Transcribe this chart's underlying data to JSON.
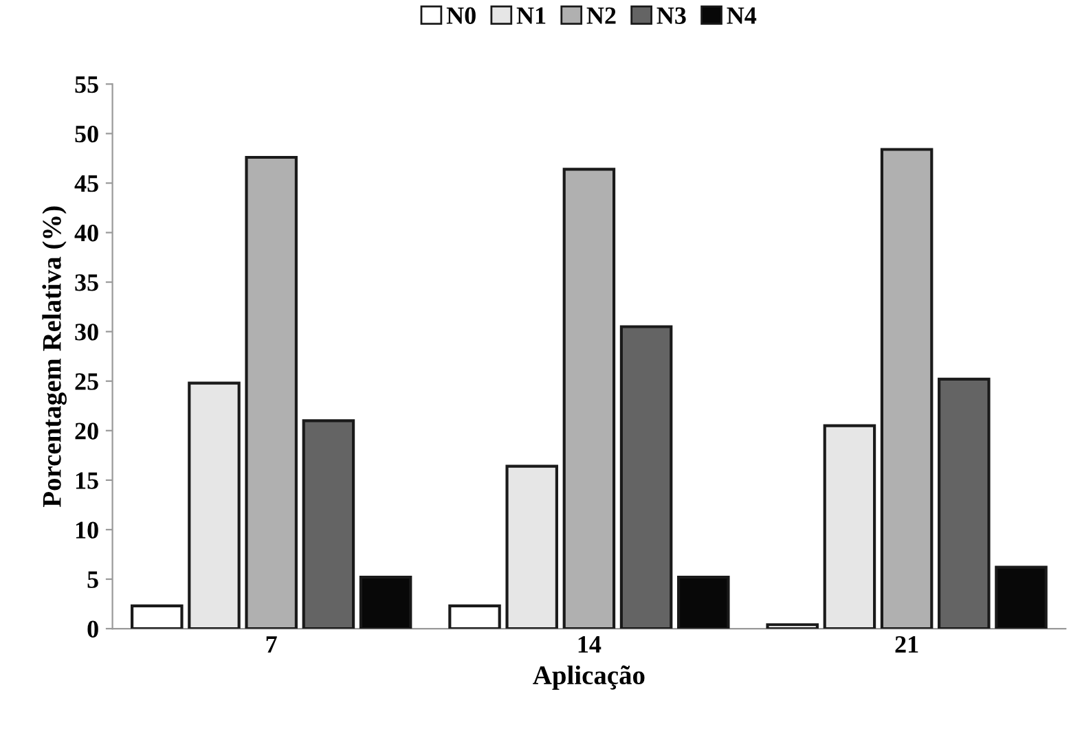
{
  "chart_data": {
    "type": "bar",
    "xlabel": "Aplicação",
    "ylabel": "Porcentagem Relativa (%)",
    "categories": [
      "7",
      "14",
      "21"
    ],
    "series": [
      {
        "name": "N0",
        "color": "#ffffff",
        "values": [
          2.3,
          2.3,
          0.4
        ]
      },
      {
        "name": "N1",
        "color": "#e6e6e6",
        "values": [
          24.8,
          16.4,
          20.5
        ]
      },
      {
        "name": "N2",
        "color": "#b0b0b0",
        "values": [
          47.6,
          46.4,
          48.4
        ]
      },
      {
        "name": "N3",
        "color": "#646464",
        "values": [
          21.0,
          30.5,
          25.2
        ]
      },
      {
        "name": "N4",
        "color": "#080808",
        "values": [
          5.2,
          5.2,
          6.2
        ]
      }
    ],
    "ylim": [
      0,
      55
    ],
    "yticks": [
      0,
      5,
      10,
      15,
      20,
      25,
      30,
      35,
      40,
      45,
      50,
      55
    ],
    "grid": false,
    "legend": "top"
  }
}
